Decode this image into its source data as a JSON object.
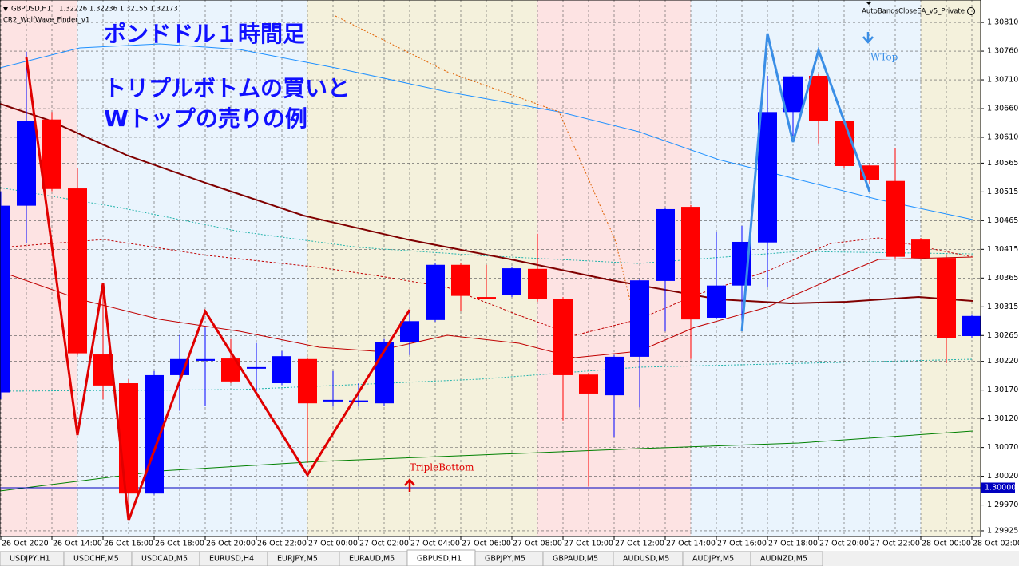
{
  "header": {
    "symbol": "GBPUSD,H1",
    "quote": "1.32226 1.32236 1.32155 1.32173",
    "indicator": "CR2_WolfWave_Finder_v1",
    "expert": "AutoBandsCloseEA_v5_Private"
  },
  "overlay_text": [
    "ポンドドル１時間足",
    "トリプルボトムの買いと",
    "Wトップの売りの例"
  ],
  "annotations": [
    "WTop",
    "TripleBottom"
  ],
  "chart_data": {
    "type": "candlestick",
    "categories": [
      "26 Oct 2020",
      null,
      "26 Oct 14:00",
      null,
      "26 Oct 16:00",
      null,
      "26 Oct 18:00",
      null,
      "26 Oct 20:00",
      null,
      "26 Oct 22:00",
      null,
      "27 Oct 00:00",
      null,
      "27 Oct 02:00",
      null,
      "27 Oct 04:00",
      null,
      "27 Oct 06:00",
      null,
      "27 Oct 08:00",
      null,
      "27 Oct 10:00",
      null,
      "27 Oct 12:00",
      null,
      "27 Oct 14:00",
      null,
      "27 Oct 16:00",
      null,
      "27 Oct 18:00",
      null,
      "27 Oct 20:00",
      null,
      "27 Oct 22:00",
      null,
      "28 Oct 00:00",
      null,
      "28 Oct 02:00"
    ],
    "open": [
      1.30166,
      1.30491,
      1.30641,
      1.30521,
      1.30232,
      1.30182,
      1.2999,
      1.30196,
      1.30221,
      1.30225,
      1.3021,
      1.30182,
      1.30224,
      1.30152,
      1.30152,
      1.30147,
      1.30254,
      1.30292,
      1.30388,
      1.30332,
      1.30335,
      1.30381,
      1.30328,
      1.30197,
      1.30161,
      1.30228,
      1.3036,
      1.30489,
      1.30296,
      1.30352,
      1.30427,
      1.30654,
      1.30717,
      1.30639,
      1.30561,
      1.30534,
      1.30432,
      1.304,
      1.30264
    ],
    "high": [
      1.30516,
      1.30759,
      1.30654,
      1.30557,
      1.30356,
      1.30189,
      1.30203,
      1.30266,
      1.30279,
      1.30259,
      1.30252,
      1.30238,
      1.30227,
      1.30203,
      1.30182,
      1.30259,
      1.30307,
      1.30391,
      1.30391,
      1.30388,
      1.30385,
      1.30442,
      1.30332,
      1.302,
      1.30231,
      1.30364,
      1.30488,
      1.30492,
      1.30446,
      1.30456,
      1.30717,
      1.30718,
      1.3072,
      1.30641,
      1.30564,
      1.30592,
      1.30435,
      1.30404,
      1.30302
    ],
    "low": [
      1.30154,
      1.30425,
      1.30516,
      1.30231,
      1.30154,
      1.29943,
      1.29988,
      1.30134,
      1.30143,
      1.30182,
      1.30168,
      1.30179,
      1.30043,
      1.30141,
      1.30141,
      1.30143,
      1.30231,
      1.30289,
      1.30307,
      1.30329,
      1.30332,
      1.30324,
      1.30117,
      1.30002,
      1.30088,
      1.3014,
      1.30272,
      1.30224,
      1.30293,
      1.30279,
      1.30349,
      1.30613,
      1.30599,
      1.30557,
      1.30529,
      1.30399,
      1.30397,
      1.30217,
      1.30261
    ],
    "close": [
      1.30491,
      1.30638,
      1.3052,
      1.30234,
      1.30178,
      1.2999,
      1.30196,
      1.30224,
      1.30224,
      1.30185,
      1.3021,
      1.30229,
      1.30147,
      1.30153,
      1.30152,
      1.30254,
      1.3029,
      1.30388,
      1.30334,
      1.30331,
      1.30382,
      1.30328,
      1.30196,
      1.30164,
      1.30228,
      1.30361,
      1.30485,
      1.30293,
      1.30352,
      1.30428,
      1.30654,
      1.30716,
      1.30638,
      1.3056,
      1.30535,
      1.30402,
      1.304,
      1.3026,
      1.30299
    ],
    "up_color": "#0000ff",
    "down_color": "#ff0000",
    "ylim": [
      1.29918,
      1.30824
    ],
    "yticks": [
      {
        "value": 1.3081,
        "label": "1.30810"
      },
      {
        "value": 1.3076,
        "label": "1.30760"
      },
      {
        "value": 1.3071,
        "label": "1.30710"
      },
      {
        "value": 1.3066,
        "label": "1.30660"
      },
      {
        "value": 1.3061,
        "label": "1.30610"
      },
      1.30565,
      1.30515,
      1.30465,
      1.30415,
      1.30365,
      1.30315,
      1.30265,
      {
        "value": 1.3022,
        "label": "1.30220"
      },
      {
        "value": 1.3017,
        "label": "1.30170"
      },
      {
        "value": 1.3012,
        "label": "1.30120"
      },
      {
        "value": 1.3007,
        "label": "1.30070"
      },
      {
        "value": 1.3002,
        "label": "1.30020"
      },
      {
        "value": 1.2997,
        "label": "1.29970"
      },
      1.29925
    ],
    "grid": true,
    "price_line": {
      "value": 1.3,
      "label": "1.30000"
    }
  },
  "tabs": {
    "items": [
      "USDJPY,H1",
      "USDCHF,M5",
      "USDCAD,M5",
      "EURUSD,H4",
      "EURJPY,M5",
      "EURAUD,M5",
      "GBPUSD,H1",
      "GBPJPY,M5",
      "GBPAUD,M5",
      "AUDUSD,M5",
      "AUDJPY,M5",
      "AUDNZD,M5"
    ],
    "active": 6
  }
}
